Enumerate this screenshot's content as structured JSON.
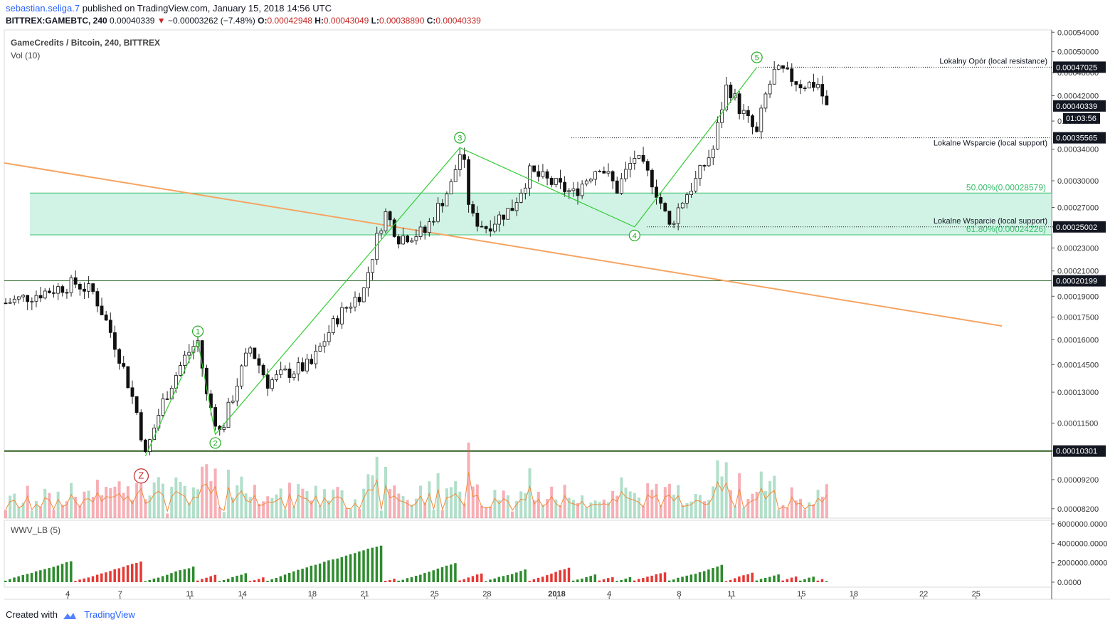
{
  "header": {
    "user": "sebastian.seliga.7",
    "published_text": "published on TradingView.com, January 15, 2018 14:56 UTC",
    "symbol": "BITTREX:GAMEBTC, 240",
    "last": "0.00040339",
    "change": "−0.00003262 (−7.48%)",
    "o_label": "O:",
    "o_val": "0.00042948",
    "h_label": "H:",
    "h_val": "0.00043049",
    "l_label": "L:",
    "l_val": "0.00038890",
    "c_label": "C:",
    "c_val": "0.00040339"
  },
  "footer": {
    "created_with": "Created with",
    "brand": "TradingView"
  },
  "colors": {
    "up": "#53b987",
    "down": "#eb4d5c",
    "wave": "#33cc33",
    "trend": "#f5a462",
    "zone": "#b2ebd6",
    "vol_ma": "#f08a3a"
  },
  "chart_data": {
    "type": "candlestick",
    "title": "GameCredits / Bitcoin, 240, BITTREX",
    "volume_label": "Vol (10)",
    "y_ticks": [
      "0.00054000",
      "0.00050000",
      "0.00046000",
      "0.00042000",
      "0.00038000",
      "0.00034000",
      "0.00030000",
      "0.00027000",
      "0.00025000",
      "0.00023000",
      "0.00021000",
      "0.00019000",
      "0.00017500",
      "0.00016000",
      "0.00014500",
      "0.00013000",
      "0.00011500",
      "0.00010301",
      "0.00009200",
      "0.00008200"
    ],
    "y_range": [
      7.9e-05,
      0.000545
    ],
    "price_labels": [
      {
        "value": 0.00047025,
        "text": "0.00047025"
      },
      {
        "value": 0.00040339,
        "text": "0.00040339"
      },
      {
        "value": 0.00035565,
        "text": "0.00035565"
      },
      {
        "value": 0.00025002,
        "text": "0.00025002"
      },
      {
        "value": 0.00020199,
        "text": "0.00020199"
      },
      {
        "value": 0.00010301,
        "text": "0.00010301"
      }
    ],
    "countdown": "01:03:56",
    "x_ticks": [
      "4",
      "7",
      "11",
      "14",
      "18",
      "21",
      "25",
      "28",
      "2018",
      "4",
      "8",
      "11",
      "15",
      "18",
      "22",
      "25"
    ],
    "annotations": {
      "resistance": "Lokalny Opór (local resistance)",
      "support_1": "Lokalne Wsparcie (local support)",
      "support_2": "Lokalne Wsparcie (local support)",
      "fib_50": "50.00%(0.00028579)",
      "fib_618": "61.80%(0.00024226)"
    },
    "fib_zone": [
      0.00024226,
      0.00028579
    ],
    "waves": [
      {
        "label": "Z",
        "date": "Dec 8",
        "price": 0.000101
      },
      {
        "label": "1",
        "date": "Dec 11",
        "price": 0.000159
      },
      {
        "label": "2",
        "date": "Dec 12",
        "price": 0.00011
      },
      {
        "label": "3",
        "date": "Dec 26",
        "price": 0.000342
      },
      {
        "label": "4",
        "date": "Jan 5",
        "price": 0.00025
      },
      {
        "label": "5",
        "date": "Jan 12",
        "price": 0.00047
      }
    ],
    "indicator": {
      "name": "WWV_LB (5)",
      "y_ticks": [
        "6000000.0000",
        "4000000.0000",
        "2000000.0000",
        "0.0000"
      ],
      "y_range": [
        0,
        6000000
      ]
    }
  }
}
